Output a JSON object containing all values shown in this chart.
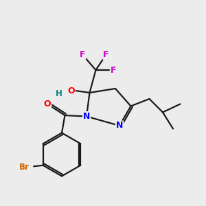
{
  "background_color": "#ececec",
  "bond_color": "#1a1a1a",
  "atom_colors": {
    "F": "#cc00cc",
    "O": "#ff0000",
    "H": "#008080",
    "N": "#0000ff",
    "Br": "#cc6600",
    "C": "#1a1a1a"
  },
  "lw": 1.6,
  "fontsize": 8.5
}
